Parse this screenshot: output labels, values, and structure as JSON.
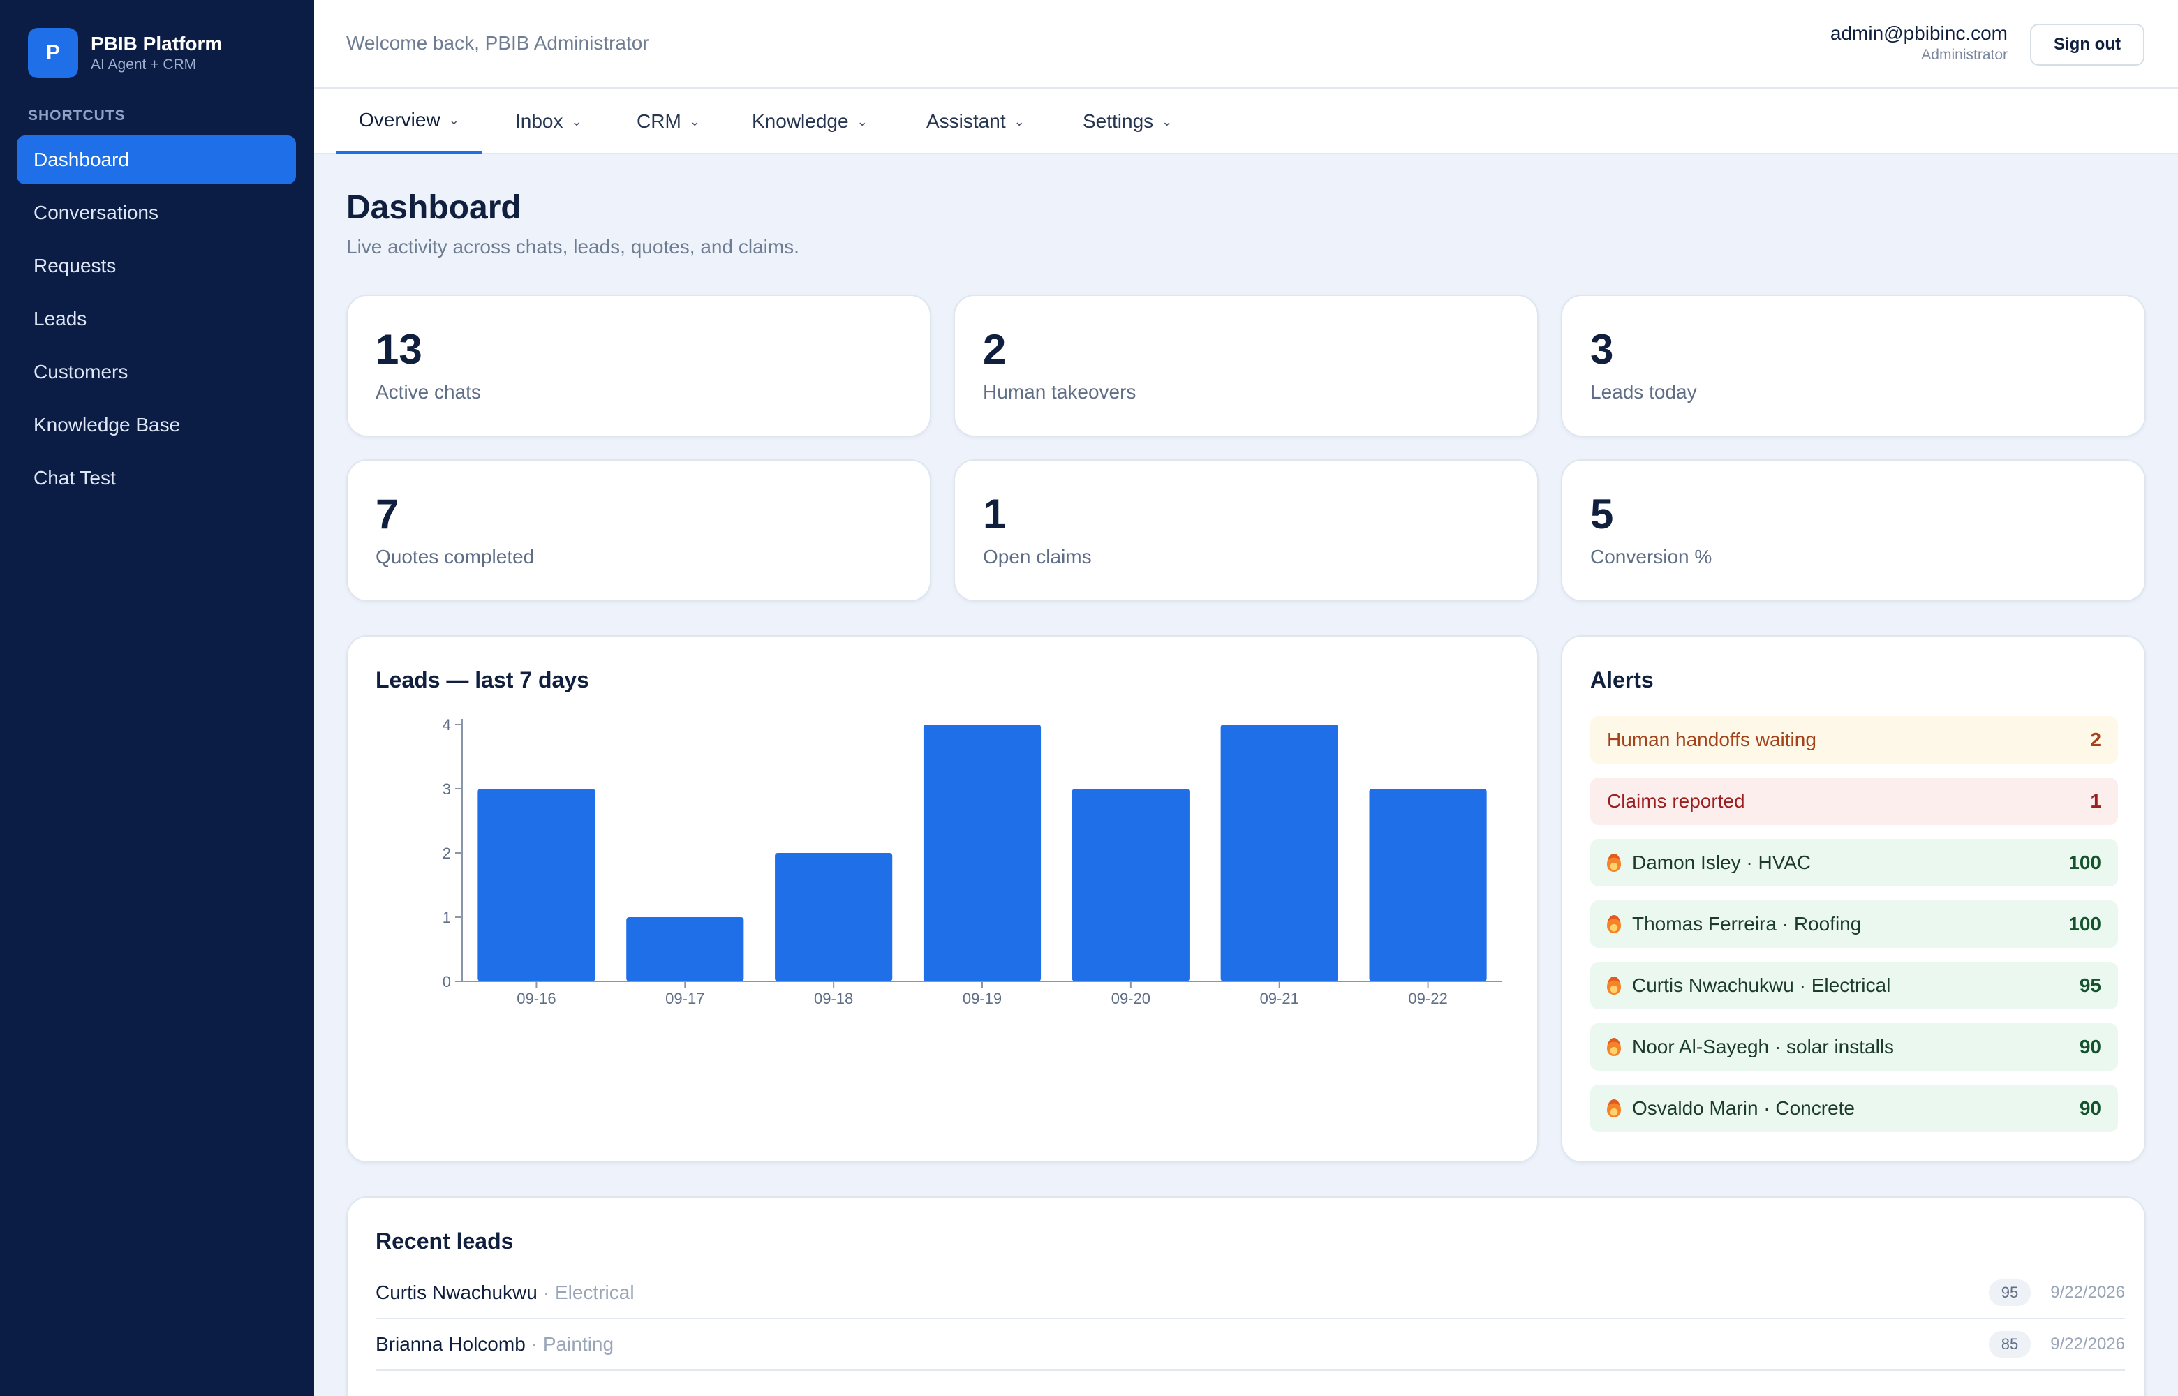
{
  "sidebar": {
    "brand_initial": "P",
    "brand_title": "PBIB Platform",
    "brand_subtitle": "AI Agent + CRM",
    "section_label": "SHORTCUTS",
    "items": [
      {
        "label": "Dashboard",
        "active": true
      },
      {
        "label": "Conversations"
      },
      {
        "label": "Requests"
      },
      {
        "label": "Leads"
      },
      {
        "label": "Customers"
      },
      {
        "label": "Knowledge Base"
      },
      {
        "label": "Chat Test"
      }
    ]
  },
  "header": {
    "welcome": "Welcome back, PBIB Administrator",
    "user_email": "admin@pbibinc.com",
    "user_role": "Administrator",
    "signout_label": "Sign out"
  },
  "tabs": [
    {
      "label": "Overview",
      "active": true
    },
    {
      "label": "Inbox"
    },
    {
      "label": "CRM"
    },
    {
      "label": "Knowledge"
    },
    {
      "label": "Assistant"
    },
    {
      "label": "Settings"
    }
  ],
  "page": {
    "title": "Dashboard",
    "subtitle": "Live activity across chats, leads, quotes, and claims."
  },
  "stats": [
    {
      "value": "13",
      "label": "Active chats"
    },
    {
      "value": "2",
      "label": "Human takeovers"
    },
    {
      "value": "3",
      "label": "Leads today"
    },
    {
      "value": "7",
      "label": "Quotes completed"
    },
    {
      "value": "1",
      "label": "Open claims"
    },
    {
      "value": "5",
      "label": "Conversion %"
    }
  ],
  "chart_card": {
    "title": "Leads — last 7 days"
  },
  "chart_data": {
    "type": "bar",
    "categories": [
      "09-16",
      "09-17",
      "09-18",
      "09-19",
      "09-20",
      "09-21",
      "09-22"
    ],
    "values": [
      3,
      1,
      2,
      4,
      3,
      4,
      3
    ],
    "yticks": [
      "0",
      "1",
      "2",
      "3",
      "4"
    ],
    "ylim": [
      0,
      4
    ],
    "color": "#1f6fe8"
  },
  "alerts": {
    "title": "Alerts",
    "items": [
      {
        "label": "Human handoffs waiting",
        "count": "2",
        "kind": "warn"
      },
      {
        "label": "Claims reported",
        "count": "1",
        "kind": "danger"
      },
      {
        "label": "Damon Isley · HVAC",
        "count": "100",
        "kind": "hot"
      },
      {
        "label": "Thomas Ferreira · Roofing",
        "count": "100",
        "kind": "hot"
      },
      {
        "label": "Curtis Nwachukwu · Electrical",
        "count": "95",
        "kind": "hot"
      },
      {
        "label": "Noor Al-Sayegh · solar installs",
        "count": "90",
        "kind": "hot"
      },
      {
        "label": "Osvaldo Marin · Concrete",
        "count": "90",
        "kind": "hot"
      }
    ]
  },
  "recent_leads": {
    "title": "Recent leads",
    "rows": [
      {
        "name": "Curtis Nwachukwu",
        "trade": "· Electrical",
        "score": "95",
        "date": "9/22/2026"
      },
      {
        "name": "Brianna Holcomb",
        "trade": "· Painting",
        "score": "85",
        "date": "9/22/2026"
      }
    ]
  }
}
